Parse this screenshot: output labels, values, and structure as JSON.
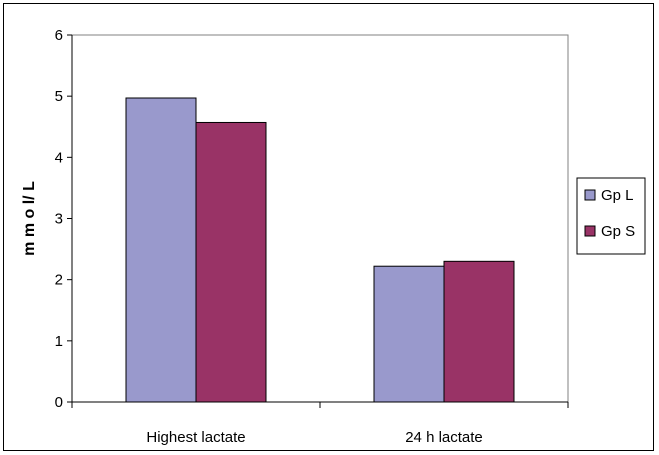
{
  "chart_data": {
    "type": "bar",
    "title": "",
    "xlabel": "",
    "ylabel": "m m o l/ L",
    "categories": [
      "Highest lactate",
      "24 h lactate"
    ],
    "series": [
      {
        "name": "Gp L",
        "values": [
          4.97,
          2.22
        ],
        "color": "#9999cc"
      },
      {
        "name": "Gp S",
        "values": [
          4.57,
          2.3
        ],
        "color": "#993366"
      }
    ],
    "ylim": [
      0,
      6
    ],
    "yticks": [
      "0",
      "1",
      "2",
      "3",
      "4",
      "5",
      "6"
    ],
    "grid": true,
    "legend_position": "right",
    "plot_background": "#ffffff",
    "gridline_color": "#000000"
  }
}
